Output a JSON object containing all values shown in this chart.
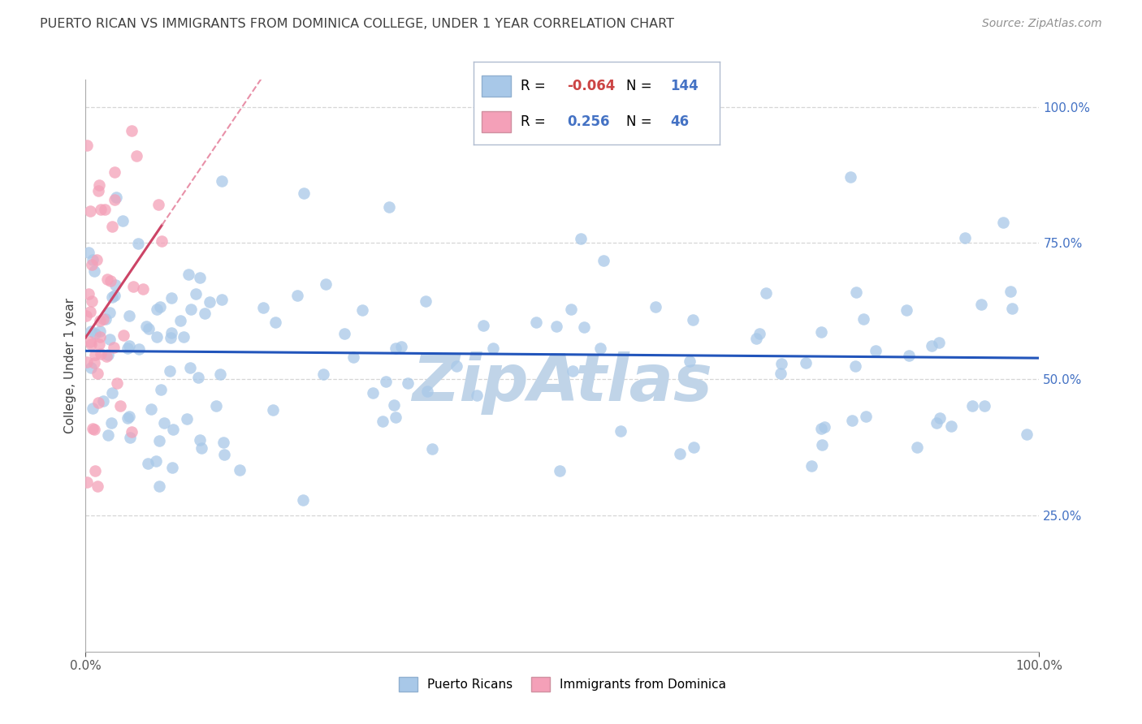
{
  "title": "PUERTO RICAN VS IMMIGRANTS FROM DOMINICA COLLEGE, UNDER 1 YEAR CORRELATION CHART",
  "source": "Source: ZipAtlas.com",
  "ylabel": "College, Under 1 year",
  "blue_R": -0.064,
  "blue_N": 144,
  "pink_R": 0.256,
  "pink_N": 46,
  "blue_color": "#a8c8e8",
  "pink_color": "#f4a0b8",
  "blue_line_color": "#2255bb",
  "pink_line_color": "#cc4466",
  "pink_line_dash_color": "#e890a8",
  "title_color": "#404040",
  "source_color": "#909090",
  "grid_color": "#cccccc",
  "watermark_color": "#c0d4e8",
  "legend_border_color": "#b0bcd0",
  "rvalue_color": "#4472C4",
  "rneg_color": "#cc4444",
  "nvalue_color": "#4472C4",
  "right_tick_color": "#4472C4",
  "xlim": [
    0,
    100
  ],
  "ylim": [
    0,
    105
  ],
  "ytick_positions": [
    25,
    50,
    75,
    100
  ],
  "ytick_labels": [
    "25.0%",
    "50.0%",
    "75.0%",
    "100.0%"
  ],
  "blue_seed": 42,
  "pink_seed": 7
}
